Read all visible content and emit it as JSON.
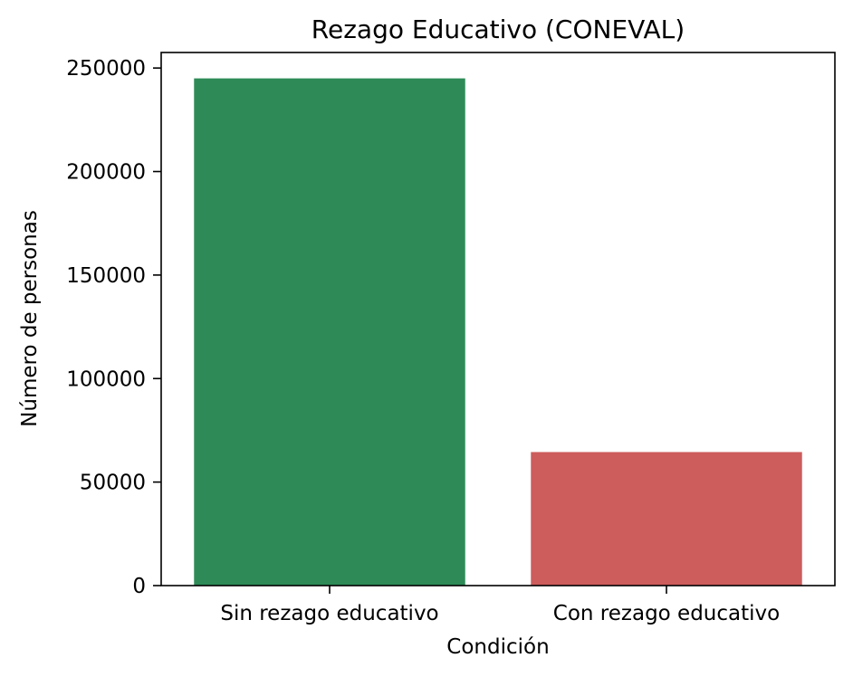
{
  "chart_data": {
    "type": "bar",
    "title": "Rezago Educativo (CONEVAL)",
    "xlabel": "Condición",
    "ylabel": "Número de personas",
    "categories": [
      "Sin rezago educativo",
      "Con rezago educativo"
    ],
    "values": [
      245000,
      64500
    ],
    "colors": [
      "#2e8b57",
      "#cd5c5c"
    ],
    "ylim": [
      0,
      257500
    ],
    "yticks": [
      0,
      50000,
      100000,
      150000,
      200000,
      250000
    ],
    "ytick_labels": [
      "0",
      "50000",
      "100000",
      "150000",
      "200000",
      "250000"
    ],
    "grid": false,
    "legend": "none"
  }
}
